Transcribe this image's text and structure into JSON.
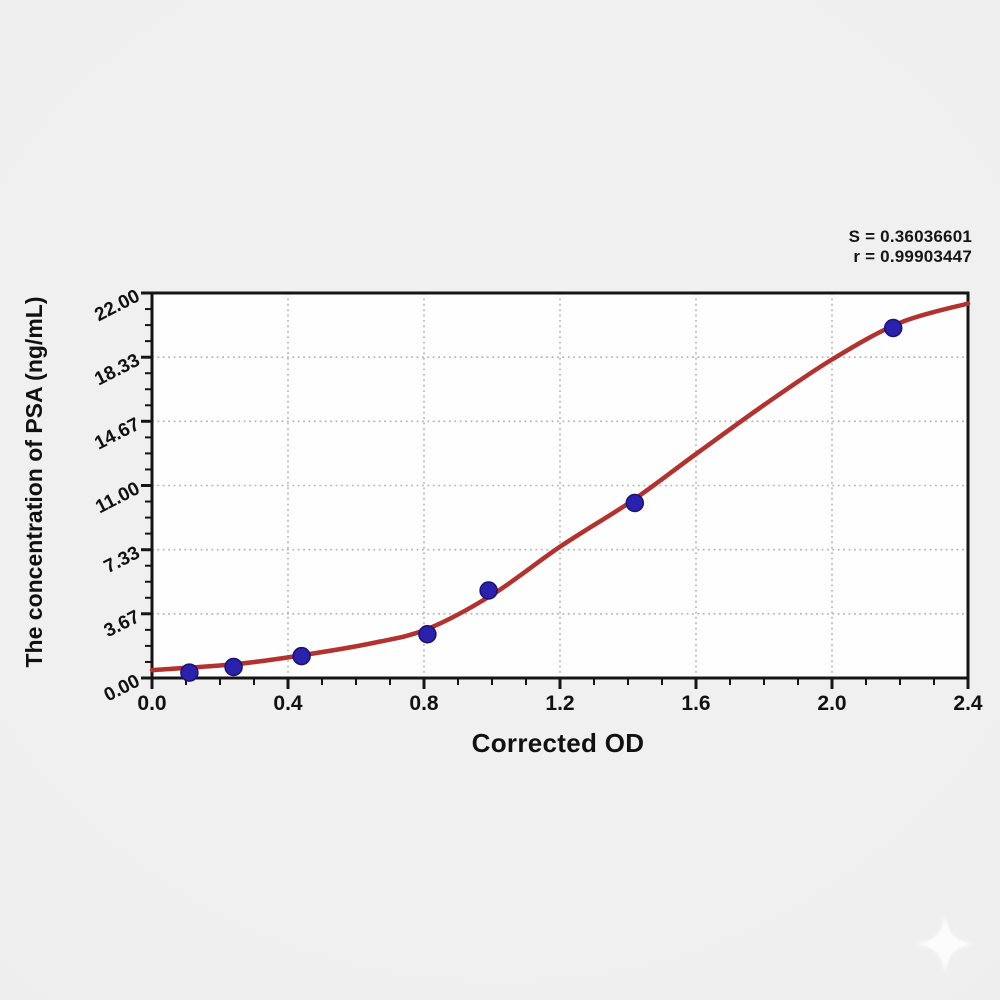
{
  "figure": {
    "stats": {
      "s_value": "S = 0.36036601",
      "r_value": "r = 0.99903447"
    },
    "x_axis_title": "Corrected OD",
    "y_axis_title": "The concentration of PSA (ng/mL)"
  },
  "chart_data": {
    "type": "scatter",
    "title": "",
    "xlabel": "Corrected OD",
    "ylabel": "The concentration of PSA (ng/mL)",
    "xlim": [
      0,
      2.4
    ],
    "ylim": [
      0,
      22
    ],
    "x_tick_labels": [
      "0.0",
      "0.4",
      "0.8",
      "1.2",
      "1.6",
      "2.0",
      "2.4"
    ],
    "y_tick_labels": [
      "0.00",
      "3.67",
      "7.33",
      "11.00",
      "14.67",
      "18.33",
      "22.00"
    ],
    "x_minor_step": 0.1,
    "y_minor_divisions": 4,
    "grid": "dotted-major-both-axes",
    "legend": "none",
    "annotations": [
      "S = 0.36036601",
      "r = 0.99903447"
    ],
    "colors": {
      "curve": "#b23230",
      "point_fill": "#2a21ad",
      "point_edge": "#1a1272",
      "grid": "#b3b3b3",
      "axis": "#151515",
      "plot_bg": "#fefefe"
    },
    "series": [
      {
        "name": "standard-points",
        "type": "scatter",
        "points": [
          [
            0.11,
            0.31
          ],
          [
            0.24,
            0.63
          ],
          [
            0.44,
            1.25
          ],
          [
            0.81,
            2.5
          ],
          [
            0.99,
            5.0
          ],
          [
            1.42,
            10.0
          ],
          [
            2.18,
            20.0
          ]
        ]
      },
      {
        "name": "4pl-fit-curve",
        "type": "line",
        "points": [
          [
            0,
            0.45
          ],
          [
            0.25,
            0.8
          ],
          [
            0.44,
            1.3
          ],
          [
            0.65,
            2.0
          ],
          [
            0.81,
            2.8
          ],
          [
            1.0,
            4.75
          ],
          [
            1.2,
            7.5
          ],
          [
            1.41,
            10.1
          ],
          [
            1.6,
            12.8
          ],
          [
            1.8,
            15.6
          ],
          [
            2.0,
            18.2
          ],
          [
            2.2,
            20.3
          ],
          [
            2.4,
            21.4
          ]
        ]
      }
    ]
  }
}
